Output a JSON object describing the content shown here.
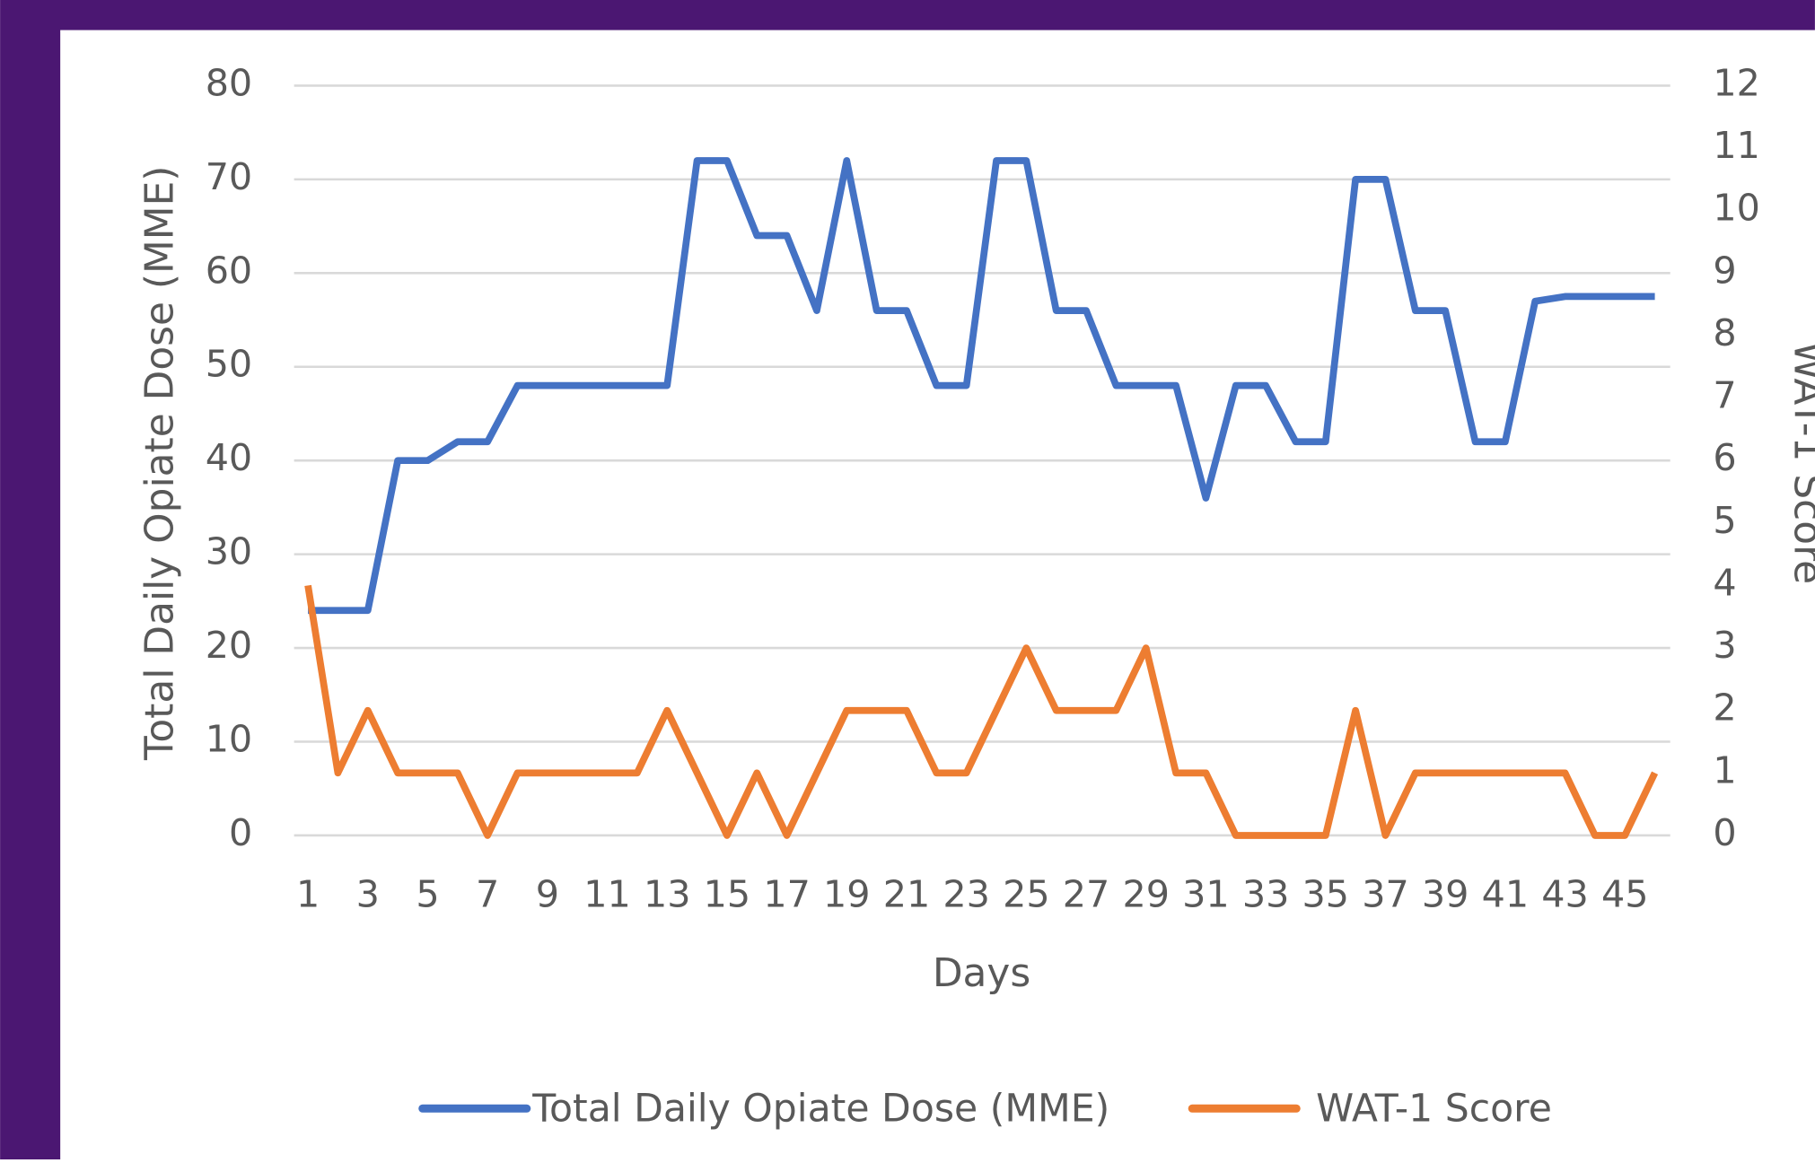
{
  "chart_data": {
    "type": "line",
    "xlabel": "Days",
    "ylabel": "Total Daily Opiate Dose (MME)",
    "y2label": "WAT-1 Score",
    "categories": [
      1,
      null,
      3,
      null,
      5,
      null,
      7,
      null,
      9,
      null,
      11,
      null,
      13,
      null,
      15,
      null,
      17,
      null,
      19,
      null,
      21,
      null,
      23,
      null,
      25,
      null,
      27,
      null,
      29,
      null,
      31,
      null,
      33,
      null,
      35,
      null,
      37,
      null,
      39,
      null,
      41,
      null,
      43,
      null,
      45,
      null
    ],
    "series": [
      {
        "name": "Total Daily Opiate Dose (MME)",
        "color": "#4472c4",
        "values": [
          24,
          24,
          24,
          40,
          40,
          42,
          42,
          48,
          48,
          48,
          48,
          48,
          48,
          72,
          72,
          64,
          64,
          56,
          72,
          56,
          56,
          48,
          48,
          72,
          72,
          56,
          56,
          48,
          48,
          48,
          36,
          48,
          48,
          42,
          42,
          70,
          70,
          56,
          56,
          42,
          42,
          57,
          57.5,
          57.5,
          57.5,
          57.5
        ]
      },
      {
        "name": "WAT-1 Score",
        "color": "#ed7d31",
        "axis": "y2",
        "values": [
          4,
          1,
          2,
          1,
          1,
          1,
          0,
          1,
          1,
          1,
          1,
          1,
          2,
          1,
          0,
          1,
          0,
          1,
          2,
          2,
          2,
          1,
          1,
          2,
          3,
          2,
          2,
          2,
          3,
          1,
          1,
          0,
          0,
          0,
          0,
          2,
          0,
          1,
          1,
          1,
          1,
          1,
          1,
          0,
          0,
          1
        ]
      }
    ],
    "ylim": [
      0,
      80
    ],
    "yticks": [
      0,
      10,
      20,
      30,
      40,
      50,
      60,
      70,
      80
    ],
    "y2lim": [
      0,
      12
    ],
    "y2ticks": [
      0,
      1,
      2,
      3,
      4,
      5,
      6,
      7,
      8,
      9,
      10,
      11,
      12
    ],
    "grid": true,
    "legend": "bottom"
  }
}
